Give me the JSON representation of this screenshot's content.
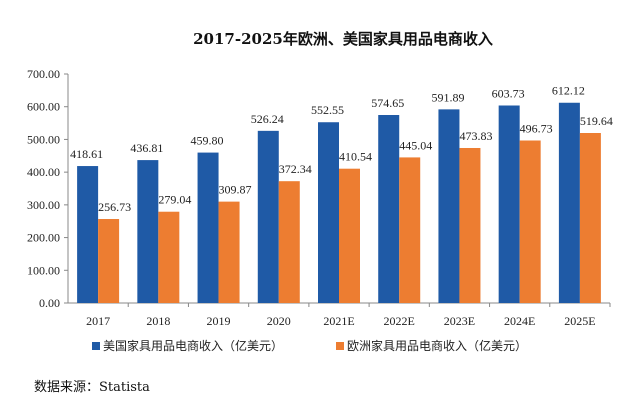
{
  "chart_data": {
    "type": "bar",
    "title": "2017-2025年欧洲、美国家具用品电商收入",
    "categories": [
      "2017",
      "2018",
      "2019",
      "2020",
      "2021E",
      "2022E",
      "2023E",
      "2024E",
      "2025E"
    ],
    "series": [
      {
        "name": "美国家具用品电商收入（亿美元）",
        "color": "#1f5aa6",
        "values": [
          418.61,
          436.81,
          459.8,
          526.24,
          552.55,
          574.65,
          591.89,
          603.73,
          612.12
        ],
        "labels": [
          "418.61",
          "436.81",
          "459.80",
          "526.24",
          "552.55",
          "574.65",
          "591.89",
          "603.73",
          "612.12"
        ]
      },
      {
        "name": "欧洲家具用品电商收入（亿美元）",
        "color": "#ed7d31",
        "values": [
          256.73,
          279.04,
          309.87,
          372.34,
          410.54,
          445.04,
          473.83,
          496.73,
          519.64
        ],
        "labels": [
          "256.73",
          "279.04",
          "309.87",
          "372.34",
          "410.54",
          "445.04",
          "473.83",
          "496.73",
          "519.64"
        ]
      }
    ],
    "ylim": [
      0,
      700
    ],
    "yticks": [
      "0.00",
      "100.00",
      "200.00",
      "300.00",
      "400.00",
      "500.00",
      "600.00",
      "700.00"
    ],
    "ytick_values": [
      0,
      100,
      200,
      300,
      400,
      500,
      600,
      700
    ],
    "grid": false,
    "legend": "bottom"
  },
  "source": "数据来源：Statista"
}
